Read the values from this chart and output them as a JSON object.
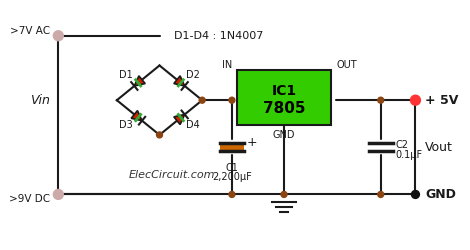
{
  "bg_color": "#f0f0f0",
  "line_color": "#1a1a1a",
  "wire_color": "#1a1a1a",
  "diode_fill": "#cc2200",
  "diode_line": "#1a1a1a",
  "diode_green_line": "#33aa33",
  "ic_fill": "#33cc00",
  "ic_border": "#1a1a1a",
  "cap_fill": "#cc6600",
  "red_dot": "#ff3333",
  "brown_dot": "#8B4513",
  "black_dot": "#111111",
  "title_label": "D1-D4 : 1N4007",
  "ic_label1": "IC1",
  "ic_label2": "7805",
  "cap1_label": "C1",
  "cap1_val": "2,200μF",
  "cap2_label": "C2",
  "cap2_val": "0.1μF",
  "v5_label": "+ 5V",
  "vout_label": "Vout",
  "gnd_label": "GND",
  "vin_label": "Vin",
  "vac_label": ">7V AC",
  "vdc_label": ">9V DC",
  "in_label": "IN",
  "out_label": "OUT",
  "gnd2_label": "GND",
  "website": "ElecCircuit.com",
  "d1_label": "D1",
  "d2_label": "D2",
  "d3_label": "D3",
  "d4_label": "D4"
}
